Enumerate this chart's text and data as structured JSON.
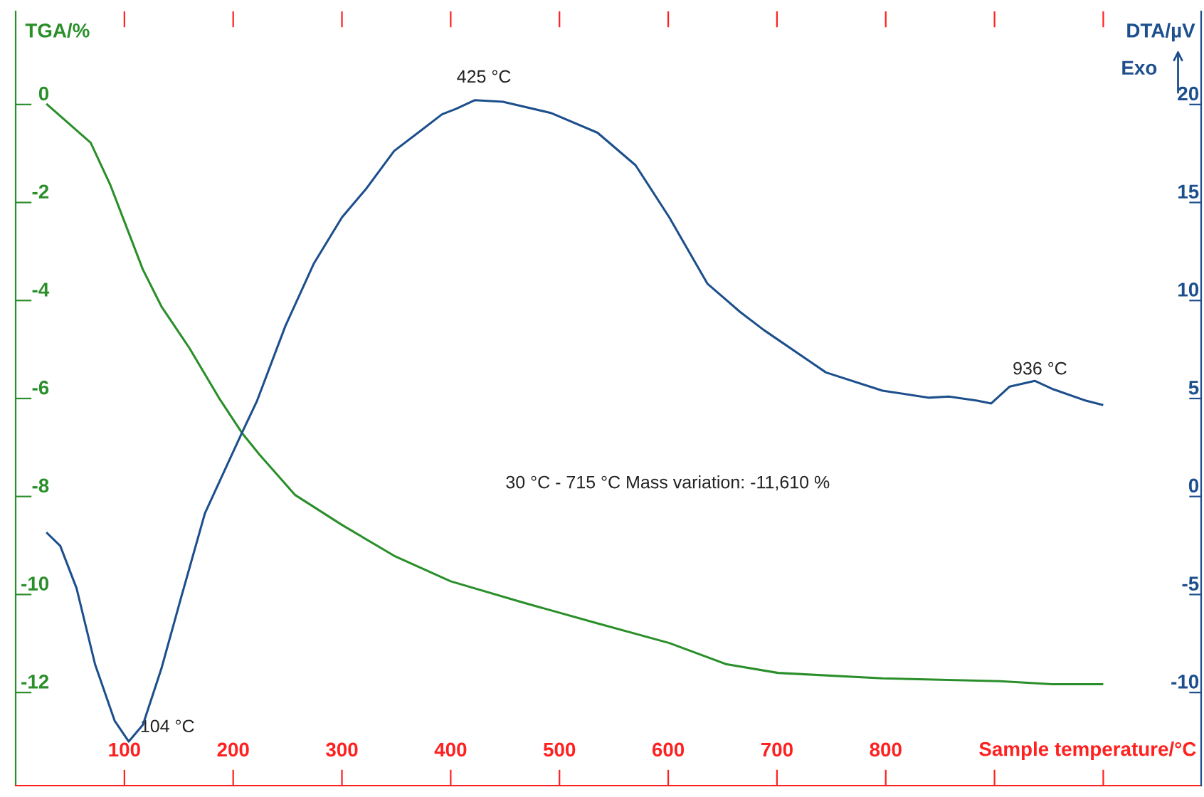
{
  "chart_data": {
    "type": "line",
    "ylabel": "TGA/%",
    "y2label": "DTA/µV",
    "xlabel": "Sample temperature/°C",
    "series": [
      {
        "color": "#2a8f2a",
        "x": [
          29,
          69,
          87,
          100,
          117,
          134,
          160,
          187,
          208,
          224,
          257,
          300,
          348,
          400,
          466,
          535,
          601,
          653,
          701,
          797,
          905,
          953,
          999
        ],
        "values": [
          0,
          -0.78,
          -1.64,
          -2.39,
          -3.37,
          -4.12,
          -4.98,
          -5.99,
          -6.7,
          -7.14,
          -7.97,
          -8.58,
          -9.21,
          -9.73,
          -10.16,
          -10.59,
          -10.99,
          -11.42,
          -11.6,
          -11.71,
          -11.77,
          -11.83,
          -11.83
        ]
      },
      {
        "color": "#1c4f8c",
        "axis": "y2",
        "x": [
          29,
          41,
          56,
          73,
          91,
          104,
          117,
          134,
          152,
          174,
          196,
          208,
          222,
          248,
          274,
          300,
          322,
          348,
          370,
          392,
          405,
          422,
          448,
          492,
          535,
          570,
          601,
          636,
          666,
          688,
          745,
          797,
          840,
          858,
          884,
          897,
          914,
          937,
          954,
          984,
          999
        ],
        "values": [
          -1.87,
          -2.52,
          -4.68,
          -8.56,
          -11.44,
          -12.5,
          -11.65,
          -8.78,
          -5.18,
          -0.86,
          1.8,
          3.24,
          4.89,
          8.7,
          11.87,
          14.24,
          15.68,
          17.63,
          18.56,
          19.5,
          19.78,
          20.22,
          20.14,
          19.57,
          18.56,
          16.9,
          14.24,
          10.86,
          9.42,
          8.49,
          6.33,
          5.4,
          5.04,
          5.1,
          4.89,
          4.75,
          5.61,
          5.9,
          5.47,
          4.89,
          4.68
        ]
      }
    ],
    "xlim": [
      0,
      1090
    ],
    "xticks": [
      100,
      200,
      300,
      400,
      500,
      600,
      700,
      800,
      {
        "value": 900,
        "label": null
      },
      {
        "value": 1000,
        "label": null
      }
    ],
    "ylim": [
      -13.9,
      1.9
    ],
    "yticks": [
      0,
      -2,
      -4,
      -6,
      -8,
      -10,
      -12
    ],
    "y2lim": [
      -14.75,
      24.75
    ],
    "y2ticks": [
      20,
      15,
      10,
      5,
      0,
      -5,
      -10
    ],
    "annotations": [
      "425 °C",
      "104 °C",
      "936 °C",
      "30 °C - 715 °C Mass variation: -11,610 %",
      "Exo"
    ],
    "grid": false,
    "legend": false,
    "marker": "none",
    "line_style": "solid"
  }
}
